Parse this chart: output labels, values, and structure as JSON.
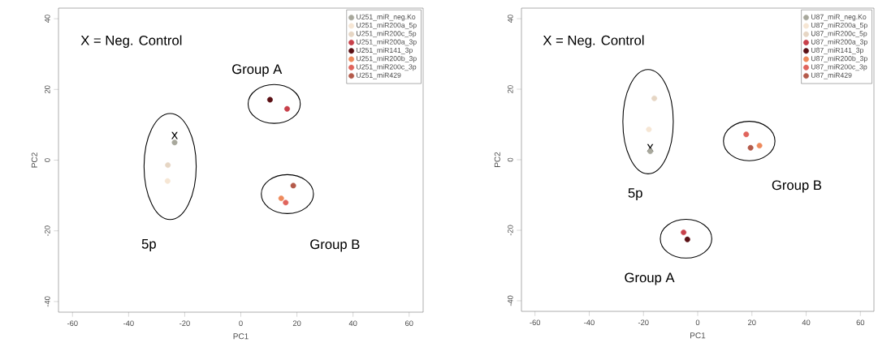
{
  "chart_data": [
    {
      "type": "scatter",
      "xlabel": "PC1",
      "ylabel": "PC2",
      "xlim": [
        -65,
        65
      ],
      "ylim": [
        -43,
        43
      ],
      "xticks": [
        -60,
        -40,
        -20,
        0,
        20,
        40,
        60
      ],
      "yticks": [
        -40,
        -20,
        0,
        20,
        40
      ],
      "legend": "top right",
      "marker": "circle",
      "grid": false,
      "series": [
        {
          "name": "U251_miR_neg.Ko",
          "color": "#a8a89c",
          "x": [
            -23.6
          ],
          "values": [
            5.0
          ]
        },
        {
          "name": "U251_miR200a_5p",
          "color": "#f6e6d4",
          "x": [
            -26.1
          ],
          "values": [
            -5.9
          ]
        },
        {
          "name": "U251_miR200c_5p",
          "color": "#e6d6c4",
          "x": [
            -26.0
          ],
          "values": [
            -1.4
          ]
        },
        {
          "name": "U251_miR200a_3p",
          "color": "#c8404a",
          "x": [
            16.5
          ],
          "values": [
            14.5
          ]
        },
        {
          "name": "U251_miR141_3p",
          "color": "#5a1014",
          "x": [
            10.4
          ],
          "values": [
            17.1
          ]
        },
        {
          "name": "U251_miR200b_3p",
          "color": "#ee8a5c",
          "x": [
            14.4
          ],
          "values": [
            -10.8
          ]
        },
        {
          "name": "U251_miR200c_3p",
          "color": "#e0645c",
          "x": [
            16.0
          ],
          "values": [
            -12.0
          ]
        },
        {
          "name": "U251_miR429",
          "color": "#b45a4a",
          "x": [
            18.7
          ],
          "values": [
            -7.2
          ]
        }
      ],
      "annotations": [
        "X = Neg. Control",
        {
          "text": "x",
          "x": -23.6,
          "y": 5.0
        },
        "Group A",
        "Group B",
        "5p"
      ]
    },
    {
      "type": "scatter",
      "xlabel": "PC1",
      "ylabel": "PC2",
      "xlim": [
        -65,
        65
      ],
      "ylim": [
        -43,
        43
      ],
      "xticks": [
        -60,
        -40,
        -20,
        0,
        20,
        40,
        60
      ],
      "yticks": [
        -40,
        -20,
        0,
        20,
        40
      ],
      "legend": "top right",
      "marker": "circle",
      "grid": false,
      "series": [
        {
          "name": "U87_miR_neg.Ko",
          "color": "#a8a89c",
          "x": [
            -17.5
          ],
          "values": [
            2.4
          ]
        },
        {
          "name": "U87_miR200a_5p",
          "color": "#f6e6d4",
          "x": [
            -18.0
          ],
          "values": [
            8.6
          ]
        },
        {
          "name": "U87_miR200c_5p",
          "color": "#e6d6c4",
          "x": [
            -16.0
          ],
          "values": [
            17.4
          ]
        },
        {
          "name": "U87_miR200a_3p",
          "color": "#c8404a",
          "x": [
            -5.2
          ],
          "values": [
            -20.6
          ]
        },
        {
          "name": "U87_miR141_3p",
          "color": "#5a1014",
          "x": [
            -3.8
          ],
          "values": [
            -22.6
          ]
        },
        {
          "name": "U87_miR200b_3p",
          "color": "#ee8a5c",
          "x": [
            22.8
          ],
          "values": [
            4.0
          ]
        },
        {
          "name": "U87_miR200c_3p",
          "color": "#e0645c",
          "x": [
            17.9
          ],
          "values": [
            7.2
          ]
        },
        {
          "name": "U87_miR429",
          "color": "#b45a4a",
          "x": [
            19.5
          ],
          "values": [
            3.4
          ]
        }
      ],
      "annotations": [
        "X = Neg. Control",
        {
          "text": "x",
          "x": -17.5,
          "y": 1.4
        },
        "Group A",
        "Group B",
        "5p"
      ]
    }
  ]
}
